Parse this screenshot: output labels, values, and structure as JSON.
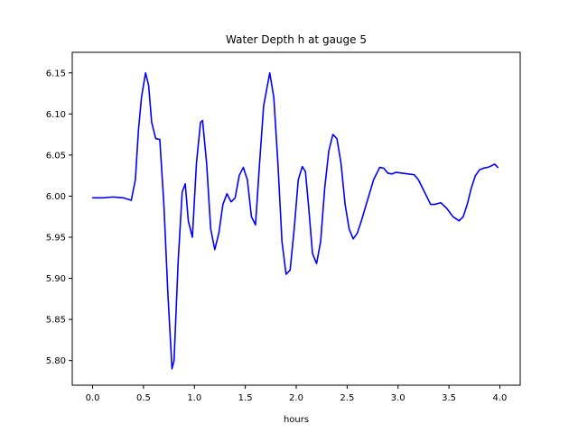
{
  "chart_data": {
    "type": "line",
    "title": "Water Depth h at gauge 5",
    "xlabel": "hours",
    "ylabel": "",
    "xlim": [
      -0.2,
      4.2
    ],
    "ylim": [
      5.77,
      6.175
    ],
    "xticks": [
      0.0,
      0.5,
      1.0,
      1.5,
      2.0,
      2.5,
      3.0,
      3.5,
      4.0
    ],
    "xtick_labels": [
      "0.0",
      "0.5",
      "1.0",
      "1.5",
      "2.0",
      "2.5",
      "3.0",
      "3.5",
      "4.0"
    ],
    "yticks": [
      5.8,
      5.85,
      5.9,
      5.95,
      6.0,
      6.05,
      6.1,
      6.15
    ],
    "ytick_labels": [
      "5.80",
      "5.85",
      "5.90",
      "5.95",
      "6.00",
      "6.05",
      "6.10",
      "6.15"
    ],
    "grid": false,
    "series": [
      {
        "color": "#0000ff",
        "x": [
          0.0,
          0.1,
          0.2,
          0.3,
          0.38,
          0.42,
          0.45,
          0.48,
          0.52,
          0.55,
          0.58,
          0.62,
          0.66,
          0.7,
          0.74,
          0.78,
          0.8,
          0.84,
          0.88,
          0.91,
          0.94,
          0.98,
          1.02,
          1.06,
          1.08,
          1.12,
          1.16,
          1.2,
          1.24,
          1.28,
          1.32,
          1.36,
          1.4,
          1.44,
          1.48,
          1.52,
          1.56,
          1.6,
          1.64,
          1.68,
          1.74,
          1.78,
          1.82,
          1.86,
          1.9,
          1.94,
          1.98,
          2.02,
          2.06,
          2.09,
          2.12,
          2.16,
          2.2,
          2.24,
          2.28,
          2.32,
          2.36,
          2.4,
          2.44,
          2.48,
          2.52,
          2.56,
          2.6,
          2.64,
          2.7,
          2.76,
          2.82,
          2.86,
          2.9,
          2.94,
          2.98,
          3.04,
          3.1,
          3.16,
          3.2,
          3.26,
          3.32,
          3.36,
          3.42,
          3.48,
          3.54,
          3.6,
          3.64,
          3.68,
          3.72,
          3.76,
          3.8,
          3.84,
          3.88,
          3.92,
          3.95,
          3.98
        ],
        "y": [
          5.998,
          5.998,
          5.999,
          5.998,
          5.995,
          6.02,
          6.08,
          6.12,
          6.15,
          6.135,
          6.09,
          6.07,
          6.069,
          5.99,
          5.88,
          5.79,
          5.8,
          5.92,
          6.005,
          6.015,
          5.97,
          5.95,
          6.04,
          6.09,
          6.092,
          6.04,
          5.96,
          5.935,
          5.955,
          5.99,
          6.003,
          5.993,
          5.998,
          6.025,
          6.035,
          6.02,
          5.975,
          5.965,
          6.04,
          6.11,
          6.15,
          6.12,
          6.04,
          5.945,
          5.905,
          5.91,
          5.96,
          6.02,
          6.036,
          6.03,
          5.99,
          5.93,
          5.918,
          5.945,
          6.01,
          6.055,
          6.075,
          6.07,
          6.04,
          5.99,
          5.96,
          5.948,
          5.955,
          5.97,
          5.995,
          6.02,
          6.035,
          6.034,
          6.028,
          6.027,
          6.029,
          6.028,
          6.027,
          6.026,
          6.02,
          6.005,
          5.99,
          5.99,
          5.992,
          5.985,
          5.975,
          5.97,
          5.975,
          5.99,
          6.01,
          6.025,
          6.032,
          6.034,
          6.035,
          6.037,
          6.039,
          6.035
        ]
      }
    ]
  }
}
